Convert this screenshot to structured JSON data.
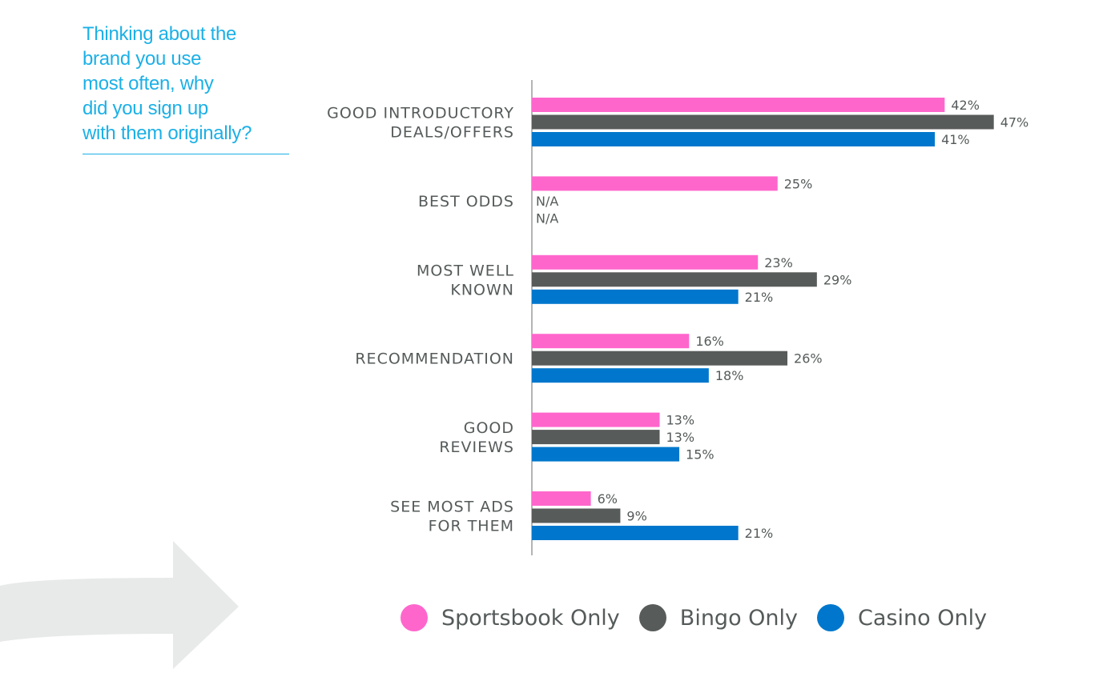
{
  "question": {
    "text": "Thinking about the\nbrand you use\nmost often, why\ndid you sign up\nwith them originally?"
  },
  "chart_data": {
    "type": "bar",
    "orientation": "horizontal",
    "title": "Thinking about the brand you use most often, why did you sign up with them originally?",
    "xlim": [
      0,
      50
    ],
    "grid": false,
    "legend_position": "bottom",
    "categories": [
      [
        "GOOD INTRODUCTORY",
        "DEALS/OFFERS"
      ],
      [
        "BEST ODDS"
      ],
      [
        "MOST WELL",
        "KNOWN"
      ],
      [
        "RECOMMENDATION"
      ],
      [
        "GOOD",
        "REVIEWS"
      ],
      [
        "SEE MOST ADS",
        "FOR THEM"
      ]
    ],
    "series": [
      {
        "name": "Sportsbook Only",
        "color": "#ff66cc",
        "values": [
          42,
          25,
          23,
          16,
          13,
          6
        ]
      },
      {
        "name": "Bingo Only",
        "color": "#575b59",
        "values": [
          47,
          null,
          29,
          26,
          13,
          9
        ]
      },
      {
        "name": "Casino Only",
        "color": "#0077cc",
        "values": [
          41,
          null,
          21,
          18,
          15,
          21
        ]
      }
    ],
    "value_suffix": "%",
    "missing_label": "N/A"
  }
}
